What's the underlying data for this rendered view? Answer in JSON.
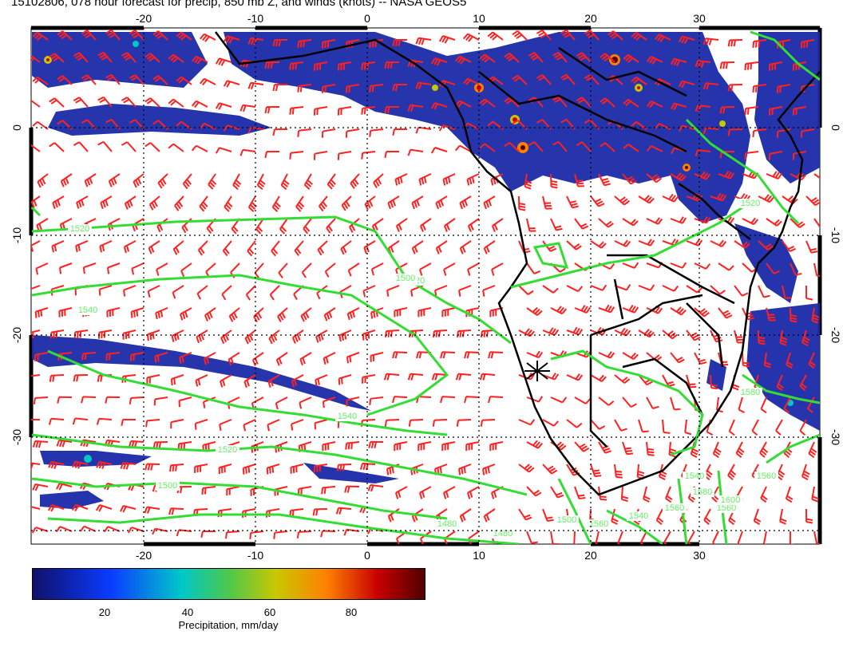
{
  "title": "15102806, 078 hour forecast for precip, 850 mb Z, and winds (knots) -- NASA GEOS5",
  "map": {
    "lon_ticks": [
      "-20",
      "-10",
      "0",
      "10",
      "20",
      "30"
    ],
    "lat_ticks": [
      "0",
      "-10",
      "-20",
      "-30"
    ],
    "contour_labels": [
      "1520",
      "1520",
      "1540",
      "1540",
      "1520",
      "1500",
      "1520",
      "1500",
      "1480",
      "1480",
      "1560",
      "1540",
      "1500",
      "1560",
      "1580",
      "1560",
      "1600",
      "1540",
      "1560",
      "1580"
    ],
    "colors": {
      "precip_base": "#1a2aa8",
      "contour": "#33dd33",
      "wind_barb": "#ff2020",
      "coastline": "#000000"
    }
  },
  "colorbar": {
    "ticks": [
      "20",
      "40",
      "60",
      "80"
    ],
    "label": "Precipitation, mm/day",
    "colors": [
      "#10106a",
      "#0a3cff",
      "#00c8c8",
      "#4cc84c",
      "#c8c800",
      "#ff8000",
      "#c80000",
      "#500000"
    ]
  }
}
